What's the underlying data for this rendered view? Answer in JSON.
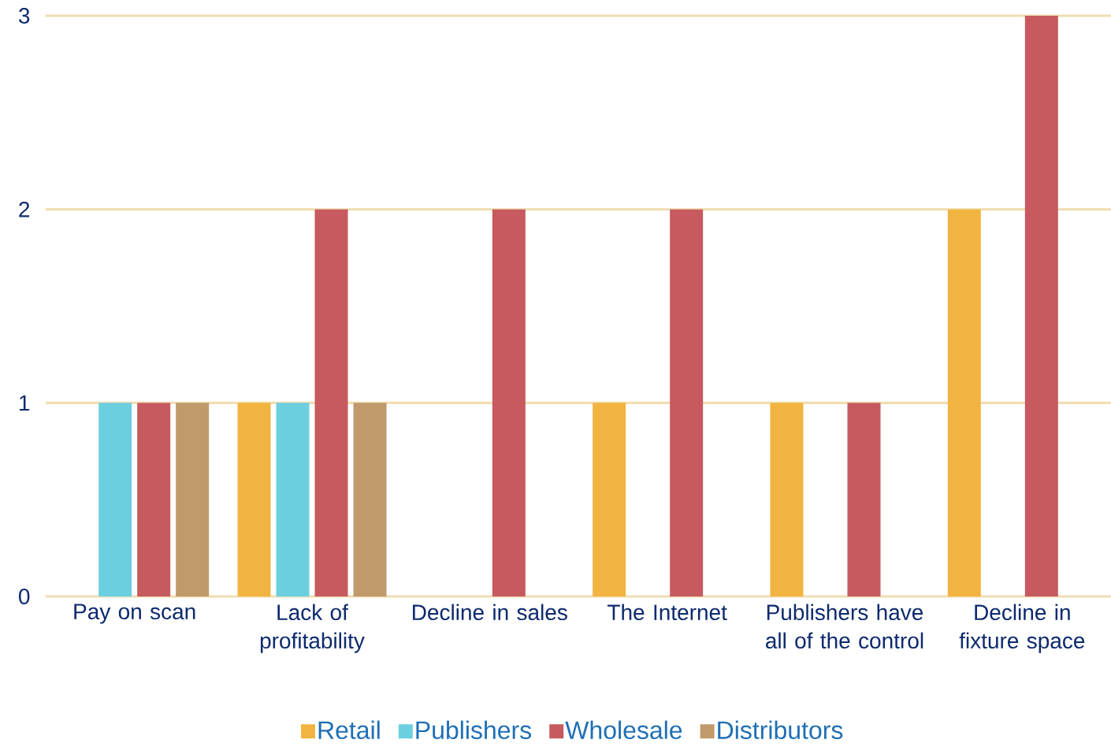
{
  "chart_data": {
    "type": "bar",
    "categories": [
      "Pay on scan",
      "Lack of profitability",
      "Decline in sales",
      "The Internet",
      "Publishers have all of the control",
      "Decline in fixture space"
    ],
    "series": [
      {
        "name": "Retail",
        "color": "#f2b441",
        "values": [
          0,
          1,
          0,
          1,
          1,
          2
        ]
      },
      {
        "name": "Publishers",
        "color": "#6ccfe0",
        "values": [
          1,
          1,
          0,
          0,
          0,
          0
        ]
      },
      {
        "name": "Wholesale",
        "color": "#c75a5e",
        "values": [
          1,
          2,
          2,
          2,
          1,
          3
        ]
      },
      {
        "name": "Distributors",
        "color": "#c09a6b",
        "values": [
          1,
          1,
          0,
          0,
          0,
          0
        ]
      }
    ],
    "ylim": [
      0,
      3
    ],
    "yticks": [
      0,
      1,
      2,
      3
    ],
    "grid": "y",
    "legend": "bottom"
  }
}
